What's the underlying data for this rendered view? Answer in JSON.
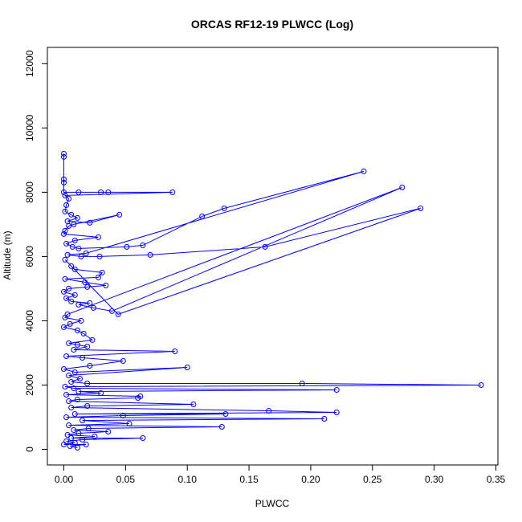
{
  "chart_data": {
    "type": "line",
    "title": "ORCAS RF12-19 PLWCC (Log)",
    "xlabel": "PLWCC",
    "ylabel": "Altitude (m)",
    "xlim": [
      0,
      0.35
    ],
    "ylim": [
      0,
      13000
    ],
    "x_ticks": [
      "0.00",
      "0.05",
      "0.10",
      "0.15",
      "0.20",
      "0.25",
      "0.30",
      "0.35"
    ],
    "y_ticks": [
      "0",
      "2000",
      "4000",
      "6000",
      "8000",
      "10000",
      "12000"
    ],
    "grid": false,
    "line_color": "#0000ff",
    "markers": "open-circle",
    "series": [
      {
        "points": [
          [
            0.0,
            9200
          ],
          [
            0.0,
            9100
          ],
          [
            0.0,
            8400
          ],
          [
            0.0,
            8300
          ],
          [
            0.0,
            8000
          ],
          [
            0.012,
            8000
          ],
          [
            0.03,
            8000
          ],
          [
            0.036,
            8000
          ],
          [
            0.088,
            8000
          ],
          [
            0.001,
            7900
          ],
          [
            0.004,
            7800
          ],
          [
            0.002,
            7600
          ],
          [
            0.001,
            7400
          ],
          [
            0.006,
            7300
          ],
          [
            0.011,
            7200
          ],
          [
            0.003,
            7100
          ],
          [
            0.021,
            7050
          ],
          [
            0.045,
            7300
          ],
          [
            0.008,
            7000
          ],
          [
            0.004,
            6950
          ],
          [
            0.001,
            6800
          ],
          [
            0.0,
            6700
          ],
          [
            0.028,
            6600
          ],
          [
            0.009,
            6500
          ],
          [
            0.002,
            6400
          ],
          [
            0.007,
            6300
          ],
          [
            0.012,
            6250
          ],
          [
            0.051,
            6300
          ],
          [
            0.064,
            6350
          ],
          [
            0.112,
            7250
          ],
          [
            0.13,
            7500
          ],
          [
            0.243,
            8650
          ],
          [
            0.018,
            6100
          ],
          [
            0.003,
            6050
          ],
          [
            0.014,
            6000
          ],
          [
            0.029,
            6000
          ],
          [
            0.07,
            6050
          ],
          [
            0.163,
            6300
          ],
          [
            0.289,
            7500
          ],
          [
            0.044,
            4200
          ],
          [
            0.001,
            5900
          ],
          [
            0.006,
            5700
          ],
          [
            0.009,
            5600
          ],
          [
            0.031,
            5500
          ],
          [
            0.028,
            5350
          ],
          [
            0.001,
            5300
          ],
          [
            0.017,
            5200
          ],
          [
            0.034,
            5100
          ],
          [
            0.019,
            5050
          ],
          [
            0.004,
            5000
          ],
          [
            0.0,
            4900
          ],
          [
            0.009,
            4800
          ],
          [
            0.002,
            4700
          ],
          [
            0.006,
            4600
          ],
          [
            0.021,
            4550
          ],
          [
            0.012,
            4500
          ],
          [
            0.024,
            4400
          ],
          [
            0.039,
            4300
          ],
          [
            0.274,
            8150
          ],
          [
            0.003,
            4200
          ],
          [
            0.001,
            4100
          ],
          [
            0.014,
            4000
          ],
          [
            0.005,
            3900
          ],
          [
            0.0,
            3800
          ],
          [
            0.011,
            3700
          ],
          [
            0.016,
            3600
          ],
          [
            0.023,
            3400
          ],
          [
            0.004,
            3300
          ],
          [
            0.011,
            3250
          ],
          [
            0.019,
            3200
          ],
          [
            0.008,
            3100
          ],
          [
            0.09,
            3050
          ],
          [
            0.002,
            2900
          ],
          [
            0.015,
            2850
          ],
          [
            0.048,
            2750
          ],
          [
            0.021,
            2600
          ],
          [
            0.0,
            2500
          ],
          [
            0.009,
            2400
          ],
          [
            0.1,
            2550
          ],
          [
            0.004,
            2300
          ],
          [
            0.013,
            2200
          ],
          [
            0.006,
            2100
          ],
          [
            0.019,
            2050
          ],
          [
            0.193,
            2050
          ],
          [
            0.338,
            2000
          ],
          [
            0.001,
            1950
          ],
          [
            0.008,
            1900
          ],
          [
            0.221,
            1850
          ],
          [
            0.012,
            1800
          ],
          [
            0.03,
            1750
          ],
          [
            0.002,
            1700
          ],
          [
            0.062,
            1650
          ],
          [
            0.06,
            1600
          ],
          [
            0.011,
            1550
          ],
          [
            0.004,
            1500
          ],
          [
            0.105,
            1400
          ],
          [
            0.019,
            1350
          ],
          [
            0.006,
            1300
          ],
          [
            0.166,
            1200
          ],
          [
            0.221,
            1150
          ],
          [
            0.009,
            1100
          ],
          [
            0.131,
            1100
          ],
          [
            0.048,
            1050
          ],
          [
            0.002,
            1000
          ],
          [
            0.211,
            950
          ],
          [
            0.015,
            900
          ],
          [
            0.053,
            800
          ],
          [
            0.004,
            750
          ],
          [
            0.128,
            700
          ],
          [
            0.02,
            650
          ],
          [
            0.008,
            600
          ],
          [
            0.036,
            550
          ],
          [
            0.012,
            500
          ],
          [
            0.003,
            450
          ],
          [
            0.025,
            400
          ],
          [
            0.006,
            350
          ],
          [
            0.064,
            350
          ],
          [
            0.015,
            300
          ],
          [
            0.002,
            250
          ],
          [
            0.009,
            200
          ],
          [
            0.0,
            150
          ],
          [
            0.018,
            150
          ],
          [
            0.005,
            100
          ],
          [
            0.011,
            50
          ]
        ]
      }
    ]
  }
}
